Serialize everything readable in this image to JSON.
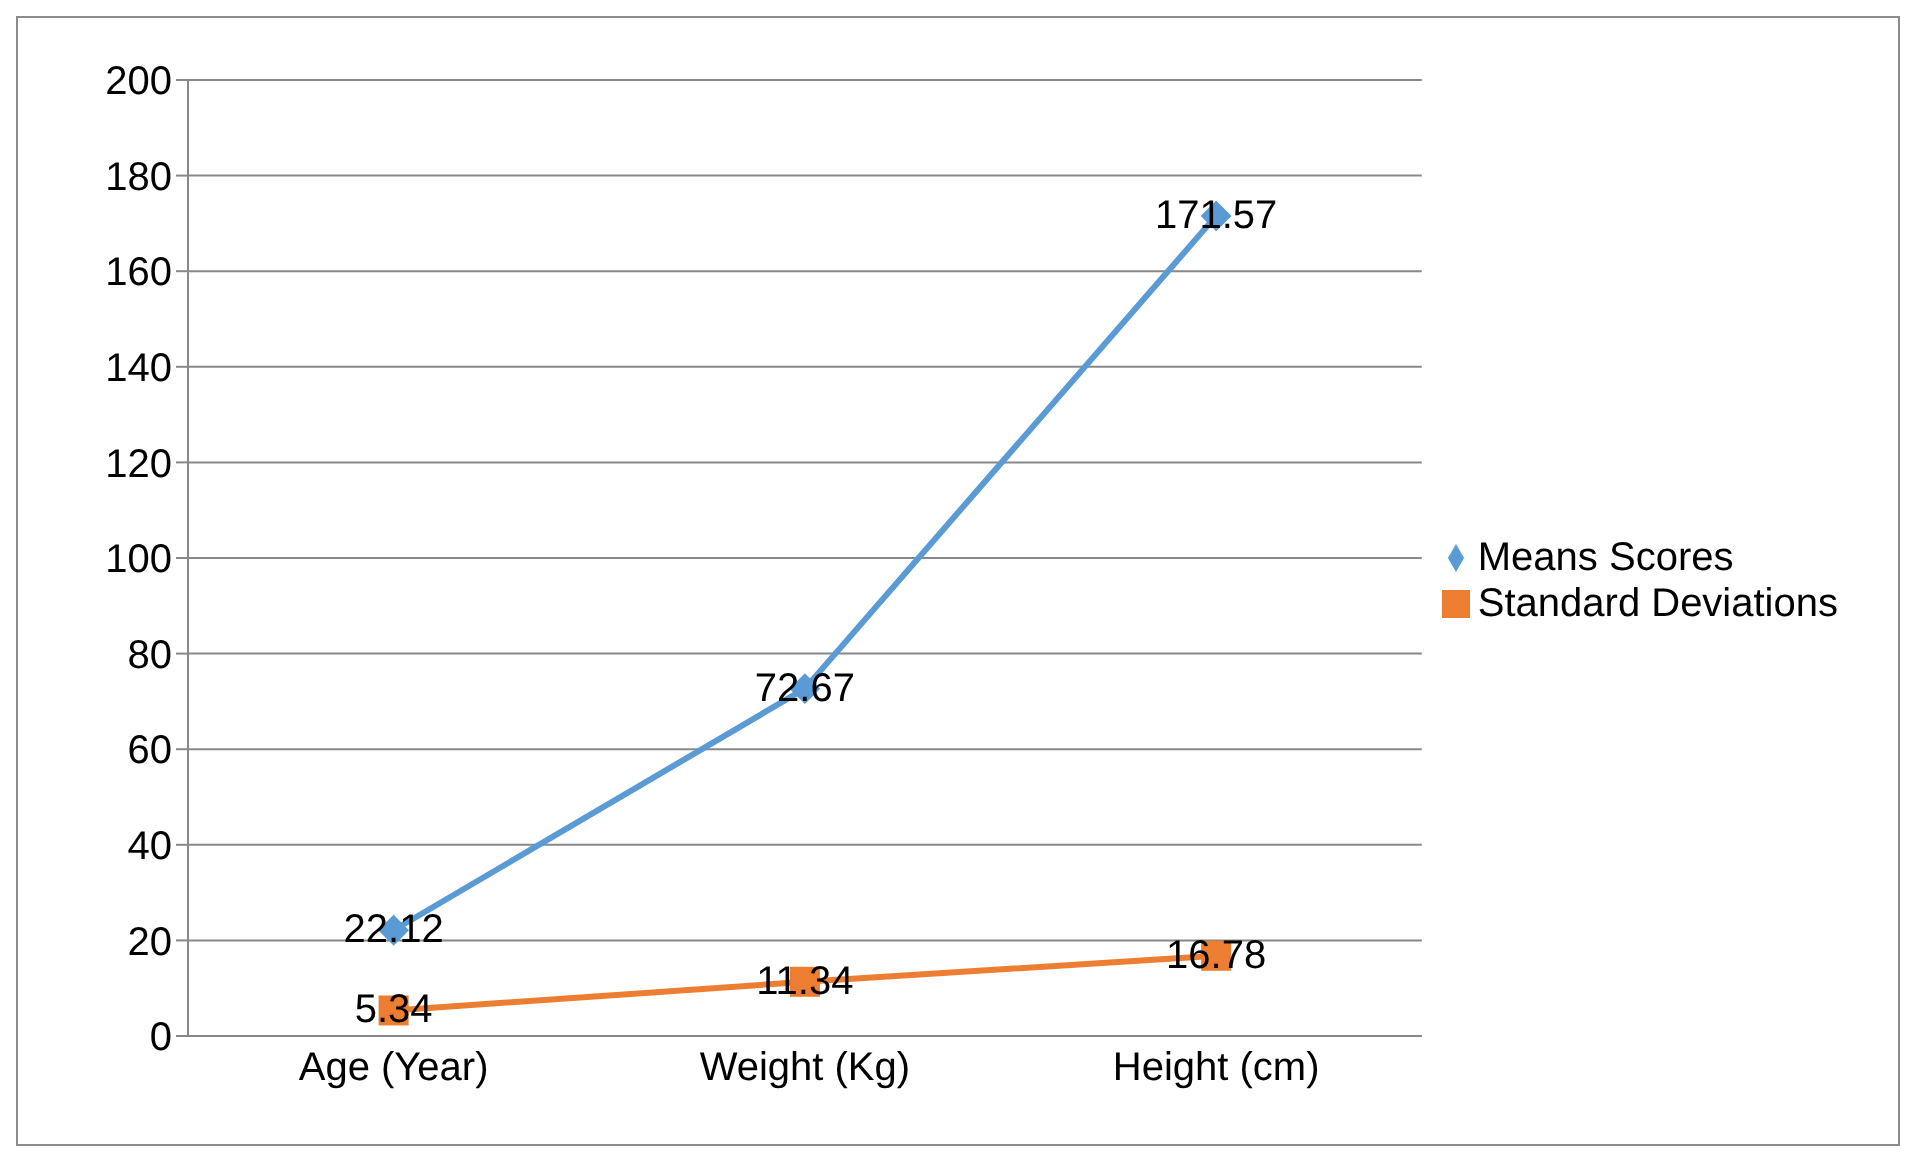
{
  "chart_data": {
    "type": "line",
    "categories": [
      "Age (Year)",
      "Weight (Kg)",
      "Height (cm)"
    ],
    "series": [
      {
        "name": "Means Scores",
        "color": "#5b9bd5",
        "values": [
          22.12,
          72.67,
          171.57
        ],
        "marker": "diamond"
      },
      {
        "name": "Standard Deviations",
        "color": "#ed7d31",
        "values": [
          5.34,
          11.34,
          16.78
        ],
        "marker": "square"
      }
    ],
    "ylim": [
      0,
      200
    ],
    "yticks": [
      0,
      20,
      40,
      60,
      80,
      100,
      120,
      140,
      160,
      180,
      200
    ],
    "grid": "y",
    "legend": "right",
    "data_labels": true,
    "line_style": "solid"
  }
}
